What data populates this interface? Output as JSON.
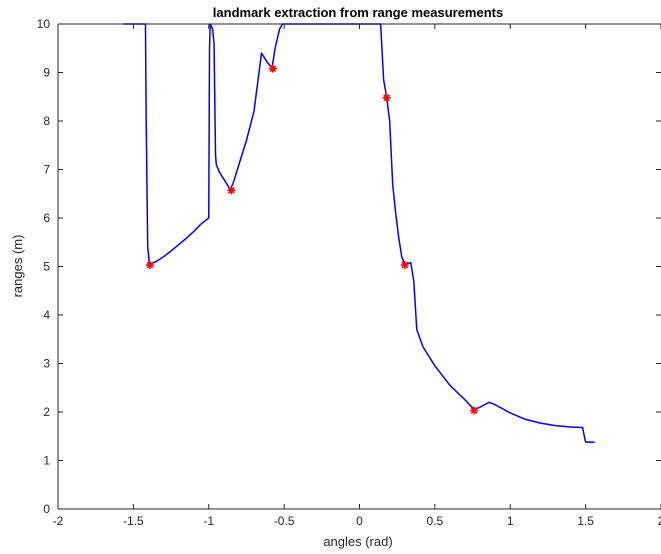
{
  "chart_data": {
    "type": "line",
    "title": "landmark extraction from range measurements",
    "xlabel": "angles (rad)",
    "ylabel": "ranges (m)",
    "xlim": [
      -2,
      2
    ],
    "ylim": [
      0,
      10
    ],
    "xticks": [
      -2,
      -1.5,
      -1,
      -0.5,
      0,
      0.5,
      1,
      1.5,
      2
    ],
    "xtick_labels": [
      "-2",
      "-1.5",
      "-1",
      "-0.5",
      "0",
      "0.5",
      "1",
      "1.5",
      "2"
    ],
    "yticks": [
      0,
      1,
      2,
      3,
      4,
      5,
      6,
      7,
      8,
      9,
      10
    ],
    "ytick_labels": [
      "0",
      "1",
      "2",
      "3",
      "4",
      "5",
      "6",
      "7",
      "8",
      "9",
      "10"
    ],
    "grid": false,
    "series": [
      {
        "color": "#0000ff",
        "x": [
          -1.57,
          -1.42,
          -1.415,
          -1.405,
          -1.395,
          -1.39,
          -1.35,
          -1.3,
          -1.25,
          -1.2,
          -1.15,
          -1.1,
          -1.05,
          -1.0,
          -0.995,
          -0.99,
          -0.975,
          -0.965,
          -0.955,
          -0.95,
          -0.93,
          -0.9,
          -0.87,
          -0.86,
          -0.84,
          -0.8,
          -0.75,
          -0.7,
          -0.65,
          -0.63,
          -0.61,
          -0.58,
          -0.56,
          -0.53,
          -0.51,
          -0.5,
          0.14,
          0.16,
          0.18,
          0.2,
          0.22,
          0.24,
          0.26,
          0.28,
          0.3,
          0.34,
          0.36,
          0.38,
          0.42,
          0.5,
          0.6,
          0.7,
          0.76,
          0.8,
          0.86,
          0.9,
          1.0,
          1.1,
          1.2,
          1.3,
          1.4,
          1.48,
          1.49,
          1.5,
          1.56
        ],
        "y": [
          10,
          10,
          8.0,
          5.4,
          5.1,
          5.05,
          5.1,
          5.2,
          5.32,
          5.45,
          5.58,
          5.72,
          5.88,
          6.0,
          9.5,
          10,
          9.9,
          9.6,
          7.3,
          7.1,
          6.95,
          6.8,
          6.65,
          6.58,
          6.7,
          7.1,
          7.6,
          8.2,
          9.4,
          9.3,
          9.2,
          9.1,
          9.5,
          9.9,
          10,
          10,
          10,
          8.85,
          8.5,
          8.0,
          6.7,
          6.1,
          5.6,
          5.2,
          5.05,
          5.08,
          4.7,
          3.7,
          3.35,
          2.95,
          2.55,
          2.25,
          2.05,
          2.1,
          2.2,
          2.15,
          1.98,
          1.85,
          1.77,
          1.72,
          1.69,
          1.68,
          1.52,
          1.38,
          1.38
        ]
      }
    ],
    "landmarks": {
      "color": "#ff0000",
      "x": [
        -1.39,
        -0.85,
        -0.575,
        0.18,
        0.3,
        0.76
      ],
      "y": [
        5.03,
        6.57,
        9.08,
        8.48,
        5.03,
        2.03
      ]
    }
  }
}
